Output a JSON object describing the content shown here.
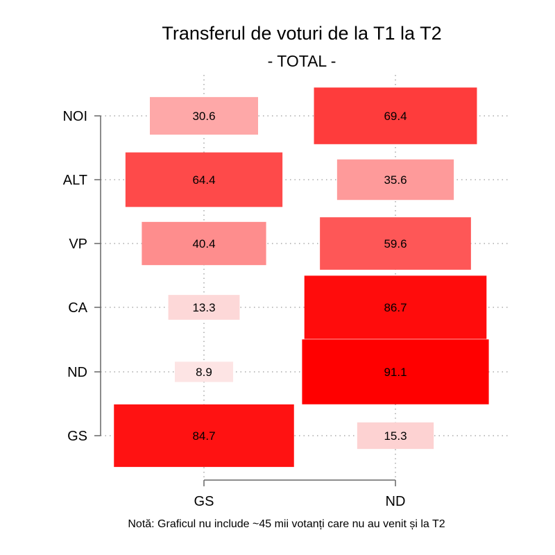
{
  "chart_data": {
    "type": "heatmap",
    "title": "Transferul de voturi de la T1 la T2",
    "subtitle": "- TOTAL -",
    "note": "Notă: Graficul nu include ~45 mii votanți care nu au venit și la T2",
    "x_categories": [
      "GS",
      "ND"
    ],
    "y_categories": [
      "NOI",
      "ALT",
      "VP",
      "CA",
      "ND",
      "GS"
    ],
    "values": [
      {
        "row": "NOI",
        "GS": 30.6,
        "ND": 69.4
      },
      {
        "row": "ALT",
        "GS": 64.4,
        "ND": 35.6
      },
      {
        "row": "VP",
        "GS": 40.4,
        "ND": 59.6
      },
      {
        "row": "CA",
        "GS": 13.3,
        "ND": 86.7
      },
      {
        "row": "ND",
        "GS": 8.9,
        "ND": 91.1
      },
      {
        "row": "GS",
        "GS": 84.7,
        "ND": 15.3
      }
    ],
    "colors": {
      "low": "#fde4e4",
      "high": "#ff0000"
    },
    "grid": true
  }
}
